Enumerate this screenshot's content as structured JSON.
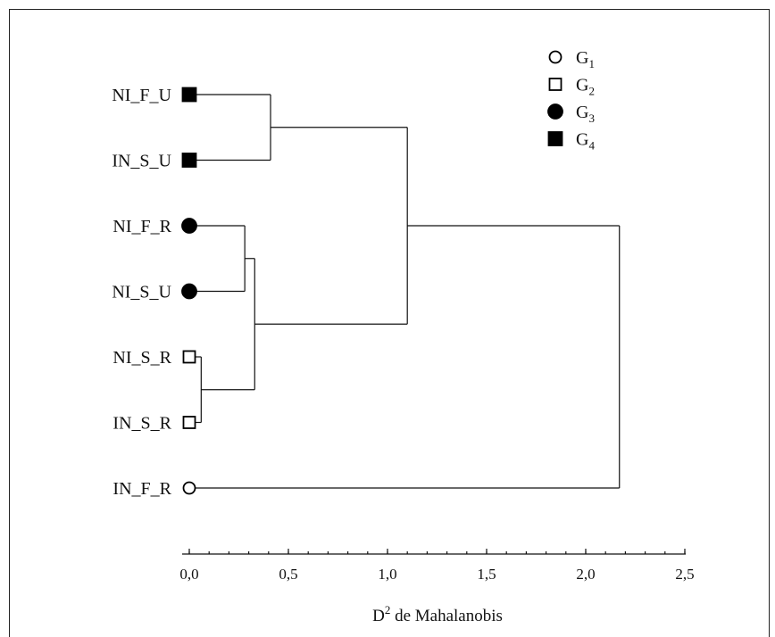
{
  "chart_data": {
    "type": "dendrogram",
    "xlabel": {
      "base": "D",
      "sup": "2",
      "rest": " de Mahalanobis"
    },
    "xlim": [
      0,
      2.5
    ],
    "ticks": [
      {
        "value": 0.0,
        "label": "0,0"
      },
      {
        "value": 0.5,
        "label": "0,5"
      },
      {
        "value": 1.0,
        "label": "1,0"
      },
      {
        "value": 1.5,
        "label": "1,5"
      },
      {
        "value": 2.0,
        "label": "2,0"
      },
      {
        "value": 2.5,
        "label": "2,5"
      }
    ],
    "minor_tick_step": 0.1,
    "leaves": [
      {
        "id": "NI_F_U",
        "group": "G4"
      },
      {
        "id": "IN_S_U",
        "group": "G4"
      },
      {
        "id": "NI_F_R",
        "group": "G3"
      },
      {
        "id": "NI_S_U",
        "group": "G3"
      },
      {
        "id": "NI_S_R",
        "group": "G2"
      },
      {
        "id": "IN_S_R",
        "group": "G2"
      },
      {
        "id": "IN_F_R",
        "group": "G1"
      }
    ],
    "merges": [
      {
        "id": "m1",
        "children": [
          "NI_S_R",
          "IN_S_R"
        ],
        "height": 0.06
      },
      {
        "id": "m2",
        "children": [
          "NI_F_R",
          "NI_S_U"
        ],
        "height": 0.28
      },
      {
        "id": "m3",
        "children": [
          "m2",
          "m1"
        ],
        "height": 0.33
      },
      {
        "id": "m4",
        "children": [
          "NI_F_U",
          "IN_S_U"
        ],
        "height": 0.41
      },
      {
        "id": "m5",
        "children": [
          "m4",
          "m3"
        ],
        "height": 1.1
      },
      {
        "id": "m6",
        "children": [
          "m5",
          "IN_F_R"
        ],
        "height": 2.17
      }
    ],
    "legend": {
      "position": "top-right",
      "items": [
        {
          "group": "G1",
          "base": "G",
          "sub": "1",
          "marker": "open-circle"
        },
        {
          "group": "G2",
          "base": "G",
          "sub": "2",
          "marker": "open-square"
        },
        {
          "group": "G3",
          "base": "G",
          "sub": "3",
          "marker": "filled-circle"
        },
        {
          "group": "G4",
          "base": "G",
          "sub": "4",
          "marker": "filled-square"
        }
      ]
    }
  }
}
